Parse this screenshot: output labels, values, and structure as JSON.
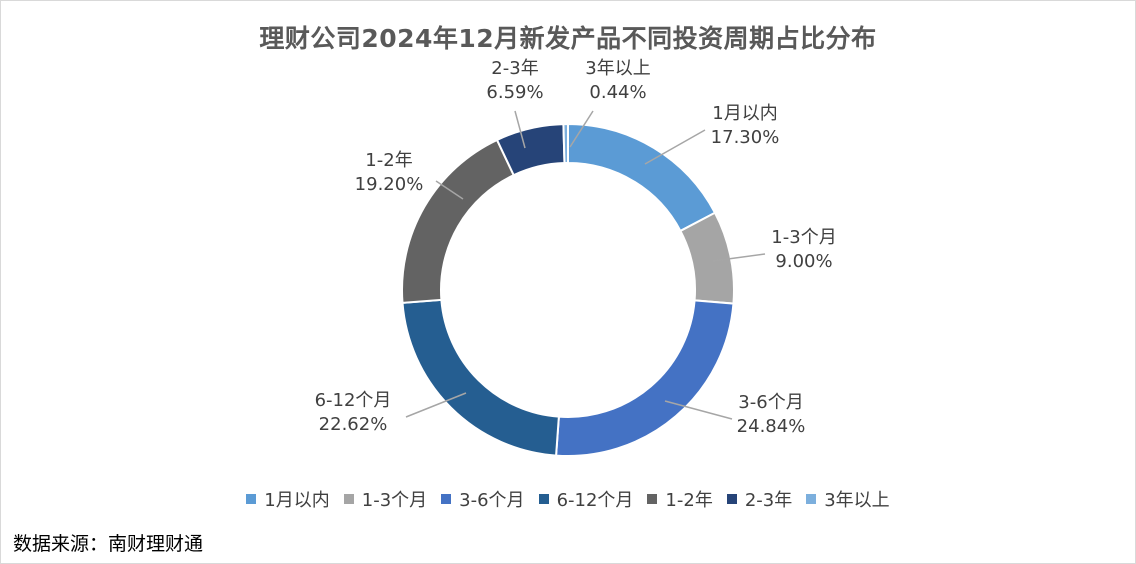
{
  "chart_data": {
    "type": "pie",
    "title": "理财公司2024年12月新发产品不同投资周期占比分布",
    "categories": [
      "1月以内",
      "1-3个月",
      "3-6个月",
      "6-12个月",
      "1-2年",
      "2-3年",
      "3年以上"
    ],
    "values": [
      17.3,
      9.0,
      24.84,
      22.62,
      19.2,
      6.59,
      0.44
    ],
    "labels": [
      "17.30%",
      "9.00%",
      "24.84%",
      "22.62%",
      "19.20%",
      "6.59%",
      "0.44%"
    ],
    "colors": [
      "#5b9bd5",
      "#a5a5a5",
      "#4472c4",
      "#255e91",
      "#636363",
      "#264478",
      "#7cafdd"
    ],
    "donut": true,
    "legend_position": "bottom"
  },
  "source": "数据来源：南财理财通"
}
